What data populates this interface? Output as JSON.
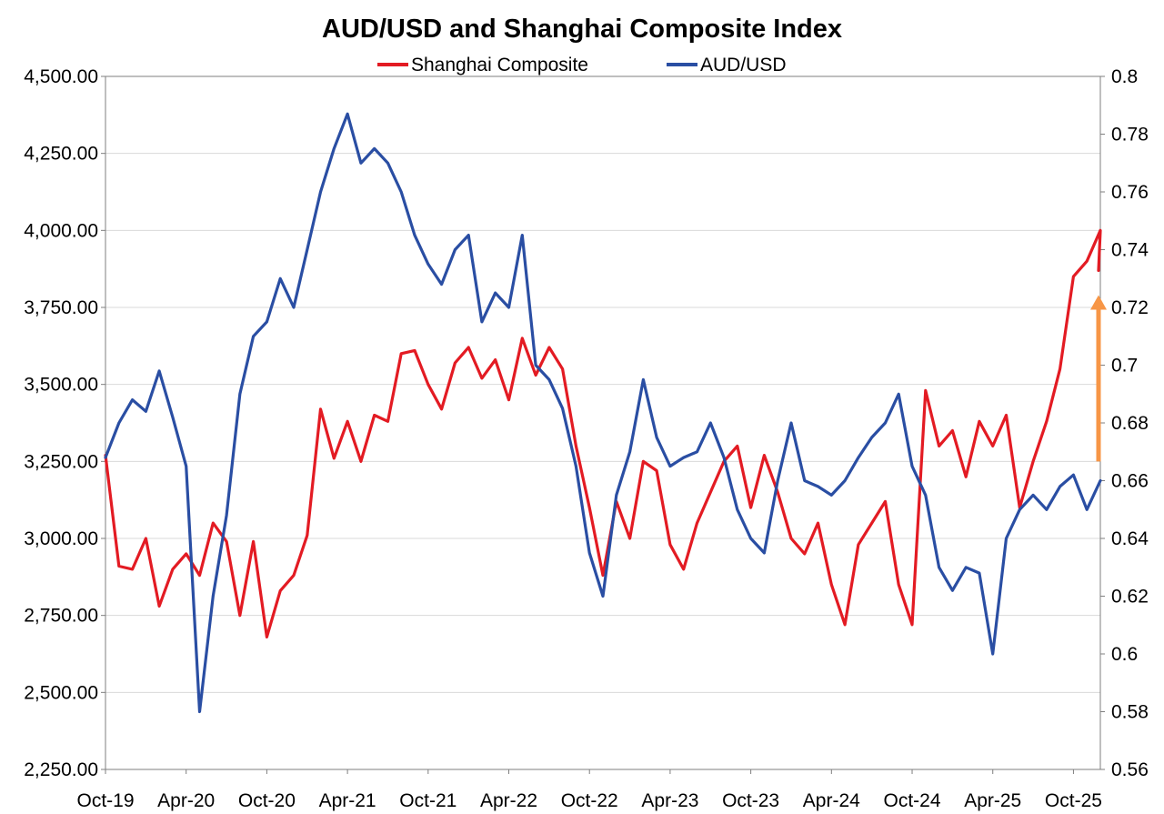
{
  "chart_data": {
    "type": "line",
    "title": "AUD/USD and Shanghai Composite Index",
    "legend": {
      "placement": "top-center",
      "entries": [
        "Shanghai Composite",
        "AUD/USD"
      ]
    },
    "grid": true,
    "x_axis": {
      "start": "2019-10",
      "end": "2025-12",
      "tick_labels": [
        "Oct-19",
        "Apr-20",
        "Oct-20",
        "Apr-21",
        "Oct-21",
        "Apr-22",
        "Oct-22",
        "Apr-23",
        "Oct-23",
        "Apr-24",
        "Oct-24",
        "Apr-25",
        "Oct-25"
      ]
    },
    "y_left": {
      "series": "Shanghai Composite",
      "range": [
        2250,
        4500
      ],
      "tick_labels": [
        "4,500.00",
        "4,250.00",
        "4,000.00",
        "3,750.00",
        "3,500.00",
        "3,250.00",
        "3,000.00",
        "2,750.00",
        "2,500.00",
        "2,250.00"
      ]
    },
    "y_right": {
      "series": "AUD/USD",
      "range": [
        0.56,
        0.8
      ],
      "tick_labels": [
        "0.8",
        "0.78",
        "0.76",
        "0.74",
        "0.72",
        "0.7",
        "0.68",
        "0.66",
        "0.64",
        "0.62",
        "0.6",
        "0.58",
        "0.56"
      ]
    },
    "series": [
      {
        "name": "Shanghai Composite",
        "axis": "left",
        "color": "#e31b23",
        "points": [
          [
            "2019-10",
            3270
          ],
          [
            "2019-11",
            2910
          ],
          [
            "2019-12",
            2900
          ],
          [
            "2020-01",
            3000
          ],
          [
            "2020-02",
            2780
          ],
          [
            "2020-03",
            2900
          ],
          [
            "2020-04",
            2950
          ],
          [
            "2020-05",
            2880
          ],
          [
            "2020-06",
            3050
          ],
          [
            "2020-07",
            2990
          ],
          [
            "2020-08",
            2750
          ],
          [
            "2020-09",
            2990
          ],
          [
            "2020-10",
            2680
          ],
          [
            "2020-11",
            2830
          ],
          [
            "2020-12",
            2880
          ],
          [
            "2021-01",
            3010
          ],
          [
            "2021-02",
            3420
          ],
          [
            "2021-03",
            3260
          ],
          [
            "2021-04",
            3380
          ],
          [
            "2021-05",
            3250
          ],
          [
            "2021-06",
            3400
          ],
          [
            "2021-07",
            3380
          ],
          [
            "2021-08",
            3600
          ],
          [
            "2021-09",
            3610
          ],
          [
            "2021-10",
            3500
          ],
          [
            "2021-11",
            3420
          ],
          [
            "2021-12",
            3570
          ],
          [
            "2022-01",
            3620
          ],
          [
            "2022-02",
            3520
          ],
          [
            "2022-03",
            3580
          ],
          [
            "2022-04",
            3450
          ],
          [
            "2022-05",
            3650
          ],
          [
            "2022-06",
            3530
          ],
          [
            "2022-07",
            3620
          ],
          [
            "2022-08",
            3550
          ],
          [
            "2022-09",
            3300
          ],
          [
            "2022-10",
            3100
          ],
          [
            "2022-11",
            2880
          ],
          [
            "2022-12",
            3120
          ],
          [
            "2023-01",
            3000
          ],
          [
            "2023-02",
            3250
          ],
          [
            "2023-03",
            3220
          ],
          [
            "2023-04",
            2980
          ],
          [
            "2023-05",
            2900
          ],
          [
            "2023-06",
            3050
          ],
          [
            "2023-07",
            3150
          ],
          [
            "2023-08",
            3250
          ],
          [
            "2023-09",
            3300
          ],
          [
            "2023-10",
            3100
          ],
          [
            "2023-11",
            3270
          ],
          [
            "2023-12",
            3150
          ],
          [
            "2024-01",
            3000
          ],
          [
            "2024-02",
            2950
          ],
          [
            "2024-03",
            3050
          ],
          [
            "2024-04",
            2850
          ],
          [
            "2024-05",
            2720
          ],
          [
            "2024-06",
            2980
          ],
          [
            "2024-07",
            3050
          ],
          [
            "2024-08",
            3120
          ],
          [
            "2024-09",
            2850
          ],
          [
            "2024-10",
            2720
          ],
          [
            "2024-11",
            3480
          ],
          [
            "2024-12",
            3300
          ],
          [
            "2025-01",
            3350
          ],
          [
            "2025-02",
            3200
          ],
          [
            "2025-03",
            3380
          ],
          [
            "2025-04",
            3300
          ],
          [
            "2025-05",
            3400
          ],
          [
            "2025-06",
            3100
          ],
          [
            "2025-07",
            3250
          ],
          [
            "2025-08",
            3380
          ],
          [
            "2025-09",
            3550
          ],
          [
            "2025-10",
            3850
          ],
          [
            "2025-11",
            3900
          ],
          [
            "2025-12",
            4000
          ],
          [
            "2025-12",
            3870
          ]
        ]
      },
      {
        "name": "AUD/USD",
        "axis": "right",
        "color": "#2a4ea3",
        "points": [
          [
            "2019-10",
            0.668
          ],
          [
            "2019-11",
            0.68
          ],
          [
            "2019-12",
            0.688
          ],
          [
            "2020-01",
            0.684
          ],
          [
            "2020-02",
            0.698
          ],
          [
            "2020-03",
            0.682
          ],
          [
            "2020-04",
            0.665
          ],
          [
            "2020-05",
            0.58
          ],
          [
            "2020-06",
            0.62
          ],
          [
            "2020-07",
            0.648
          ],
          [
            "2020-08",
            0.69
          ],
          [
            "2020-09",
            0.71
          ],
          [
            "2020-10",
            0.715
          ],
          [
            "2020-11",
            0.73
          ],
          [
            "2020-12",
            0.72
          ],
          [
            "2021-01",
            0.74
          ],
          [
            "2021-02",
            0.76
          ],
          [
            "2021-03",
            0.775
          ],
          [
            "2021-04",
            0.787
          ],
          [
            "2021-05",
            0.77
          ],
          [
            "2021-06",
            0.775
          ],
          [
            "2021-07",
            0.77
          ],
          [
            "2021-08",
            0.76
          ],
          [
            "2021-09",
            0.745
          ],
          [
            "2021-10",
            0.735
          ],
          [
            "2021-11",
            0.728
          ],
          [
            "2021-12",
            0.74
          ],
          [
            "2022-01",
            0.745
          ],
          [
            "2022-02",
            0.715
          ],
          [
            "2022-03",
            0.725
          ],
          [
            "2022-04",
            0.72
          ],
          [
            "2022-05",
            0.745
          ],
          [
            "2022-06",
            0.7
          ],
          [
            "2022-07",
            0.695
          ],
          [
            "2022-08",
            0.685
          ],
          [
            "2022-09",
            0.665
          ],
          [
            "2022-10",
            0.635
          ],
          [
            "2022-11",
            0.62
          ],
          [
            "2022-12",
            0.655
          ],
          [
            "2023-01",
            0.67
          ],
          [
            "2023-02",
            0.695
          ],
          [
            "2023-03",
            0.675
          ],
          [
            "2023-04",
            0.665
          ],
          [
            "2023-05",
            0.668
          ],
          [
            "2023-06",
            0.67
          ],
          [
            "2023-07",
            0.68
          ],
          [
            "2023-08",
            0.668
          ],
          [
            "2023-09",
            0.65
          ],
          [
            "2023-10",
            0.64
          ],
          [
            "2023-11",
            0.635
          ],
          [
            "2023-12",
            0.66
          ],
          [
            "2024-01",
            0.68
          ],
          [
            "2024-02",
            0.66
          ],
          [
            "2024-03",
            0.658
          ],
          [
            "2024-04",
            0.655
          ],
          [
            "2024-05",
            0.66
          ],
          [
            "2024-06",
            0.668
          ],
          [
            "2024-07",
            0.675
          ],
          [
            "2024-08",
            0.68
          ],
          [
            "2024-09",
            0.69
          ],
          [
            "2024-10",
            0.665
          ],
          [
            "2024-11",
            0.655
          ],
          [
            "2024-12",
            0.63
          ],
          [
            "2025-01",
            0.622
          ],
          [
            "2025-02",
            0.63
          ],
          [
            "2025-03",
            0.628
          ],
          [
            "2025-04",
            0.6
          ],
          [
            "2025-05",
            0.64
          ],
          [
            "2025-06",
            0.65
          ],
          [
            "2025-07",
            0.655
          ],
          [
            "2025-08",
            0.65
          ],
          [
            "2025-09",
            0.658
          ],
          [
            "2025-10",
            0.662
          ],
          [
            "2025-11",
            0.65
          ],
          [
            "2025-12",
            0.66
          ]
        ]
      }
    ],
    "annotations": [
      {
        "type": "arrow",
        "color": "#f79646",
        "date": "2025-12",
        "from_value": 3250,
        "to_value": 3790,
        "axis": "left"
      }
    ]
  }
}
